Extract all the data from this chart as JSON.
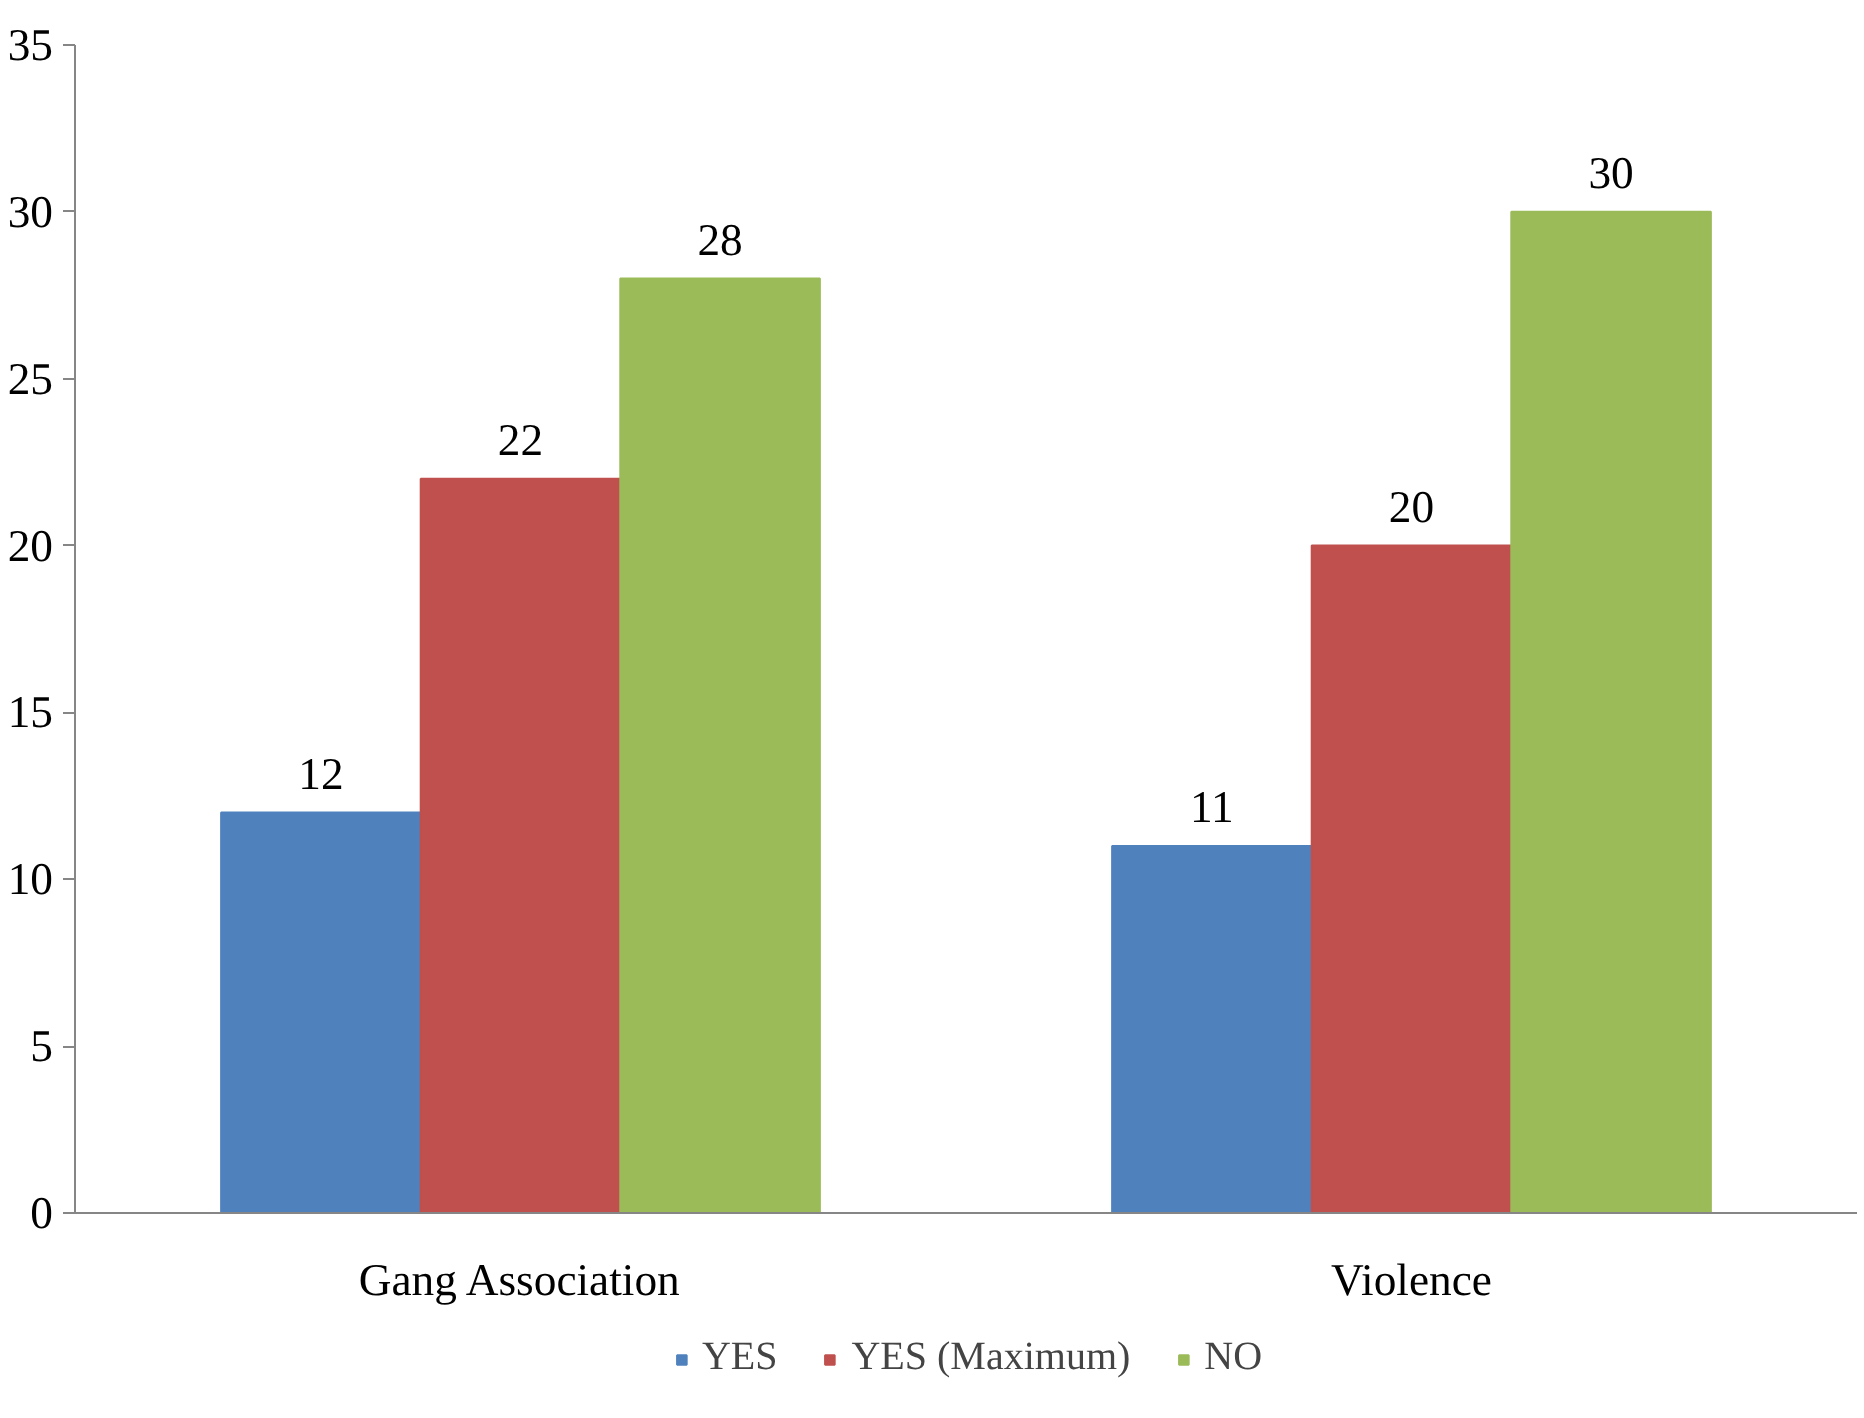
{
  "chart_data": {
    "type": "bar",
    "categories": [
      "Gang Association",
      "Violence"
    ],
    "series": [
      {
        "name": "YES",
        "color": "#4f81bd",
        "values": [
          12,
          11
        ]
      },
      {
        "name": "YES (Maximum)",
        "color": "#c0504d",
        "values": [
          22,
          20
        ]
      },
      {
        "name": "NO",
        "color": "#9bbb59",
        "values": [
          28,
          30
        ]
      }
    ],
    "ylim": [
      0,
      35
    ],
    "yticks": [
      0,
      5,
      10,
      15,
      20,
      25,
      30,
      35
    ],
    "grid": false,
    "legend": "bottom",
    "data_labels": true
  }
}
